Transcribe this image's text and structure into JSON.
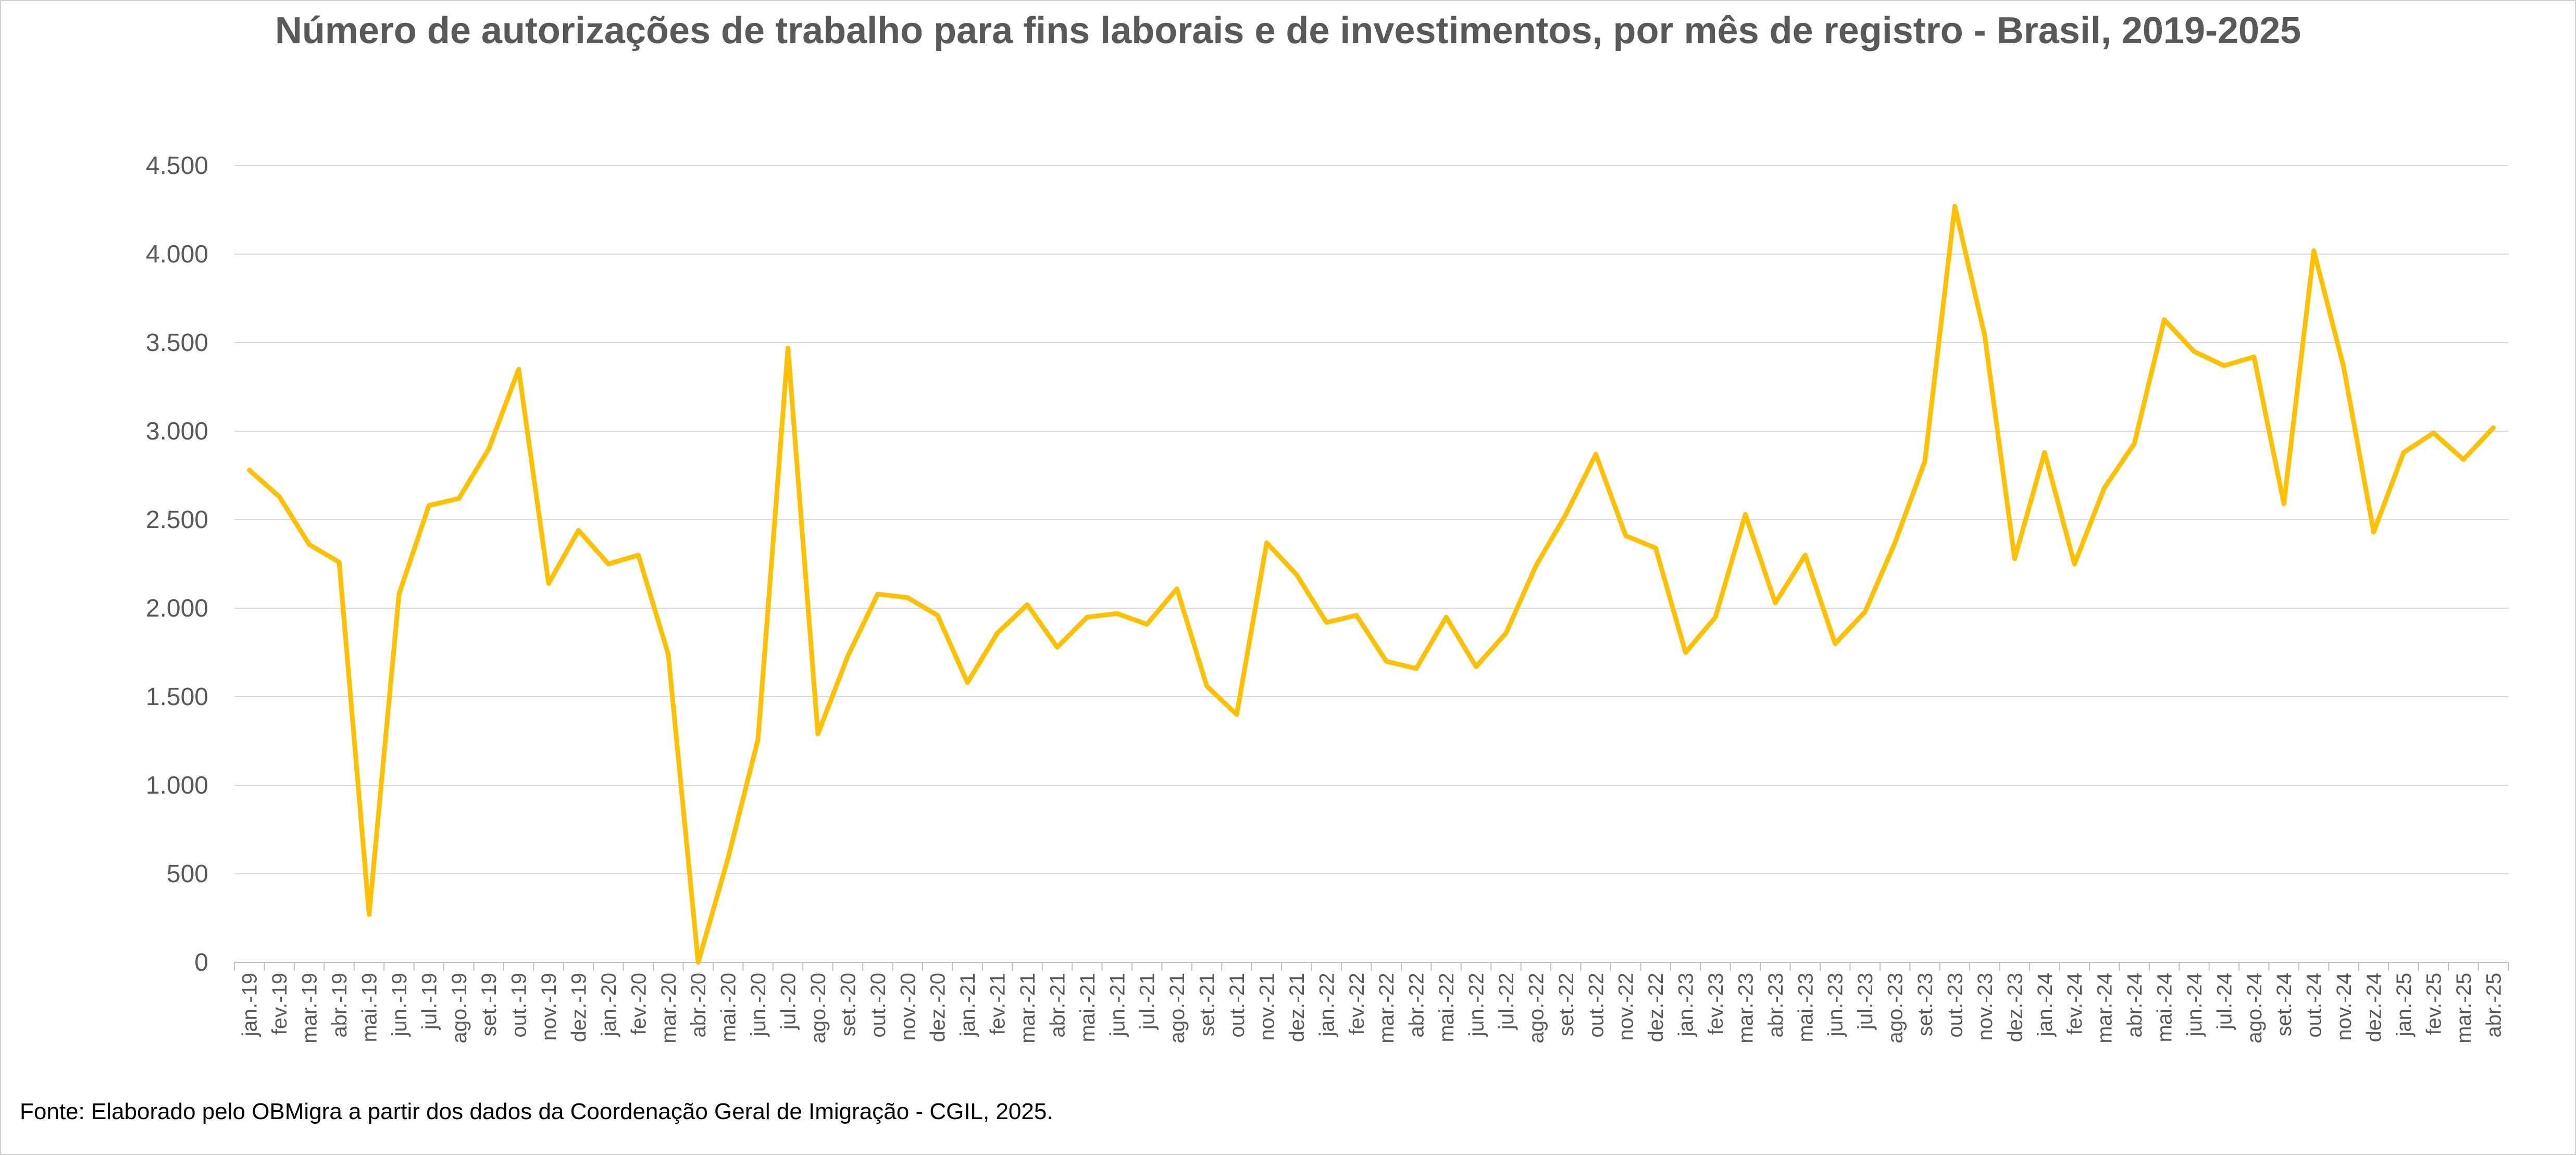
{
  "chart_data": {
    "type": "line",
    "title": "Número de autorizações de trabalho para fins laborais e de investimentos, por mês de registro - Brasil, 2019-2025",
    "xlabel": "",
    "ylabel": "",
    "ylim": [
      0,
      4500
    ],
    "yticks": [
      0,
      500,
      1000,
      1500,
      2000,
      2500,
      3000,
      3500,
      4000,
      4500
    ],
    "ytick_labels": [
      "0",
      "500",
      "1.000",
      "1.500",
      "2.000",
      "2.500",
      "3.000",
      "3.500",
      "4.000",
      "4.500"
    ],
    "grid": true,
    "legend": "none",
    "line_color": "#FFC000",
    "categories": [
      "jan.-19",
      "fev.-19",
      "mar.-19",
      "abr.-19",
      "mai.-19",
      "jun.-19",
      "jul.-19",
      "ago.-19",
      "set.-19",
      "out.-19",
      "nov.-19",
      "dez.-19",
      "jan.-20",
      "fev.-20",
      "mar.-20",
      "abr.-20",
      "mai.-20",
      "jun.-20",
      "jul.-20",
      "ago.-20",
      "set.-20",
      "out.-20",
      "nov.-20",
      "dez.-20",
      "jan.-21",
      "fev.-21",
      "mar.-21",
      "abr.-21",
      "mai.-21",
      "jun.-21",
      "jul.-21",
      "ago.-21",
      "set.-21",
      "out.-21",
      "nov.-21",
      "dez.-21",
      "jan.-22",
      "fev.-22",
      "mar.-22",
      "abr.-22",
      "mai.-22",
      "jun.-22",
      "jul.-22",
      "ago.-22",
      "set.-22",
      "out.-22",
      "nov.-22",
      "dez.-22",
      "jan.-23",
      "fev.-23",
      "mar.-23",
      "abr.-23",
      "mai.-23",
      "jun.-23",
      "jul.-23",
      "ago.-23",
      "set.-23",
      "out.-23",
      "nov.-23",
      "dez.-23",
      "jan.-24",
      "fev.-24",
      "mar.-24",
      "abr.-24",
      "mai.-24",
      "jun.-24",
      "jul.-24",
      "ago.-24",
      "set.-24",
      "out.-24",
      "nov.-24",
      "dez.-24",
      "jan.-25",
      "fev.-25",
      "mar.-25",
      "abr.-25"
    ],
    "series": [
      {
        "name": "Autorizações",
        "values": [
          2780,
          2630,
          2360,
          2260,
          270,
          2080,
          2580,
          2620,
          2900,
          3350,
          2140,
          2440,
          2250,
          2300,
          1740,
          0,
          590,
          1260,
          3470,
          1290,
          1730,
          2080,
          2060,
          1960,
          1580,
          1860,
          2020,
          1780,
          1950,
          1970,
          1910,
          2110,
          1560,
          1400,
          2370,
          2190,
          1920,
          1960,
          1700,
          1660,
          1950,
          1670,
          1860,
          2240,
          2530,
          2870,
          2410,
          2340,
          1750,
          1950,
          2530,
          2030,
          2300,
          1800,
          1980,
          2370,
          2830,
          4270,
          3540,
          2280,
          2880,
          2250,
          2680,
          2930,
          3630,
          3450,
          3370,
          3420,
          2590,
          4020,
          3360,
          2430,
          2880,
          2990,
          2840,
          3020
        ]
      }
    ]
  },
  "source": "Fonte: Elaborado pelo OBMigra a partir dos dados da Coordenação Geral de Imigração - CGIL, 2025."
}
